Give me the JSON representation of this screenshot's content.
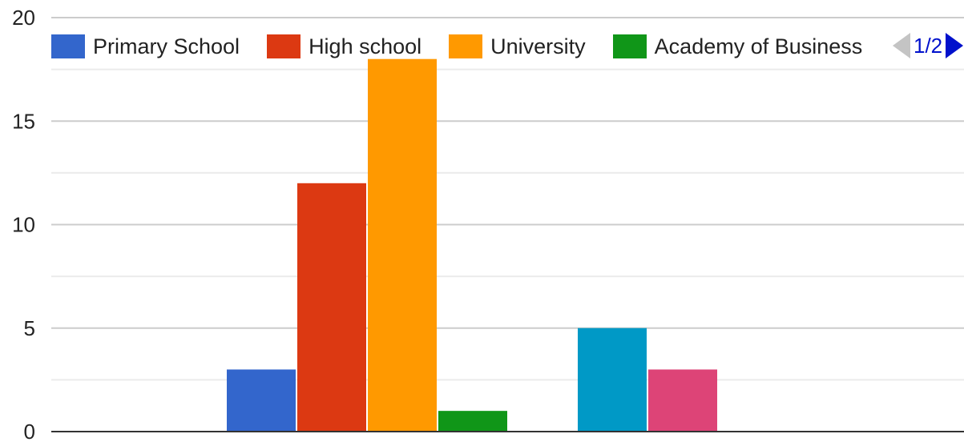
{
  "chart_data": {
    "type": "bar",
    "categories": [
      "",
      ""
    ],
    "series": [
      {
        "name": "Primary School",
        "color": "#3366cc",
        "values": [
          3,
          null
        ]
      },
      {
        "name": "High school",
        "color": "#dc3912",
        "values": [
          12,
          null
        ]
      },
      {
        "name": "University",
        "color": "#ff9900",
        "values": [
          18,
          null
        ]
      },
      {
        "name": "Academy of Business",
        "color": "#109618",
        "values": [
          1,
          null
        ]
      },
      {
        "name": "",
        "color": "#0099c6",
        "values": [
          null,
          5
        ]
      },
      {
        "name": "",
        "color": "#dd4477",
        "values": [
          null,
          3
        ]
      }
    ],
    "ylim": [
      0,
      20
    ],
    "yticks": [
      "0",
      "5",
      "10",
      "15",
      "20"
    ],
    "grid": true,
    "legend_position": "top",
    "legend_page": "1/2"
  }
}
